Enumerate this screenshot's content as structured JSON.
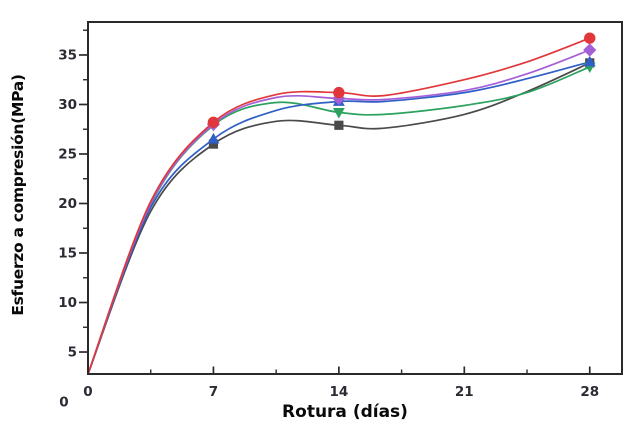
{
  "chart_data": {
    "type": "line",
    "title": "",
    "xlabel": "Rotura (días)",
    "ylabel": "Esfuerzo a compresión(MPa)",
    "x_unit": "días",
    "y_unit": "MPa",
    "xlim": [
      0,
      29.8
    ],
    "ylim": [
      2.78,
      38.33
    ],
    "x_major_ticks": [
      0,
      7,
      14,
      21,
      28
    ],
    "x_minor_ticks": [
      3.5,
      10.5,
      17.5,
      24.5
    ],
    "y_major_ticks": [
      0,
      5,
      10,
      15,
      20,
      25,
      30,
      35
    ],
    "y_minor_ticks": [
      7.5,
      12.5,
      17.5,
      22.5,
      27.5,
      32.5,
      37.5
    ],
    "grid": false,
    "legend": "none",
    "axis_color": "#2a2a2a",
    "tick_label_color": "#2b2b34",
    "marker_days": [
      7,
      14,
      28
    ],
    "series": [
      {
        "name": "negra",
        "color": "#4a4a4a",
        "marker": "square",
        "points": {
          "x": [
            7,
            14,
            28
          ],
          "y": [
            26.0,
            27.9,
            34.2
          ]
        },
        "curve": [
          [
            0,
            2.78
          ],
          [
            3.5,
            19.2
          ],
          [
            7,
            26.0
          ],
          [
            10.5,
            28.3
          ],
          [
            14,
            27.9
          ],
          [
            16.5,
            27.6
          ],
          [
            21,
            29.0
          ],
          [
            24.5,
            31.3
          ],
          [
            28,
            34.2
          ]
        ]
      },
      {
        "name": "verde",
        "color": "#2ba25f",
        "marker": "triangle-down",
        "points": {
          "x": [
            7,
            14,
            28
          ],
          "y": [
            27.9,
            29.2,
            33.8
          ]
        },
        "curve": [
          [
            0,
            2.78
          ],
          [
            3.5,
            19.9
          ],
          [
            7,
            27.9
          ],
          [
            10.5,
            30.2
          ],
          [
            14,
            29.2
          ],
          [
            16.5,
            29.0
          ],
          [
            21,
            29.9
          ],
          [
            24.5,
            31.2
          ],
          [
            28,
            33.8
          ]
        ]
      },
      {
        "name": "azul",
        "color": "#2f5fc7",
        "marker": "triangle-up",
        "points": {
          "x": [
            7,
            14,
            28
          ],
          "y": [
            26.5,
            30.3,
            34.3
          ]
        },
        "curve": [
          [
            0,
            2.78
          ],
          [
            3.5,
            19.6
          ],
          [
            7,
            26.5
          ],
          [
            10.5,
            29.4
          ],
          [
            14,
            30.3
          ],
          [
            16.5,
            30.3
          ],
          [
            21,
            31.2
          ],
          [
            24.5,
            32.6
          ],
          [
            28,
            34.3
          ]
        ]
      },
      {
        "name": "morada",
        "color": "#a55fd6",
        "marker": "diamond",
        "points": {
          "x": [
            7,
            14,
            28
          ],
          "y": [
            28.0,
            30.6,
            35.5
          ]
        },
        "curve": [
          [
            0,
            2.78
          ],
          [
            3.5,
            20.0
          ],
          [
            7,
            28.0
          ],
          [
            10.5,
            30.7
          ],
          [
            14,
            30.6
          ],
          [
            16.5,
            30.5
          ],
          [
            21,
            31.4
          ],
          [
            24.5,
            33.1
          ],
          [
            28,
            35.5
          ]
        ]
      },
      {
        "name": "roja",
        "color": "#e1373b",
        "marker": "circle",
        "points": {
          "x": [
            7,
            14,
            28
          ],
          "y": [
            28.2,
            31.2,
            36.7
          ]
        },
        "curve": [
          [
            0,
            2.78
          ],
          [
            3.5,
            20.2
          ],
          [
            7,
            28.2
          ],
          [
            10.5,
            31.0
          ],
          [
            14,
            31.2
          ],
          [
            16.5,
            30.9
          ],
          [
            21,
            32.5
          ],
          [
            24.5,
            34.3
          ],
          [
            28,
            36.7
          ]
        ]
      }
    ]
  }
}
